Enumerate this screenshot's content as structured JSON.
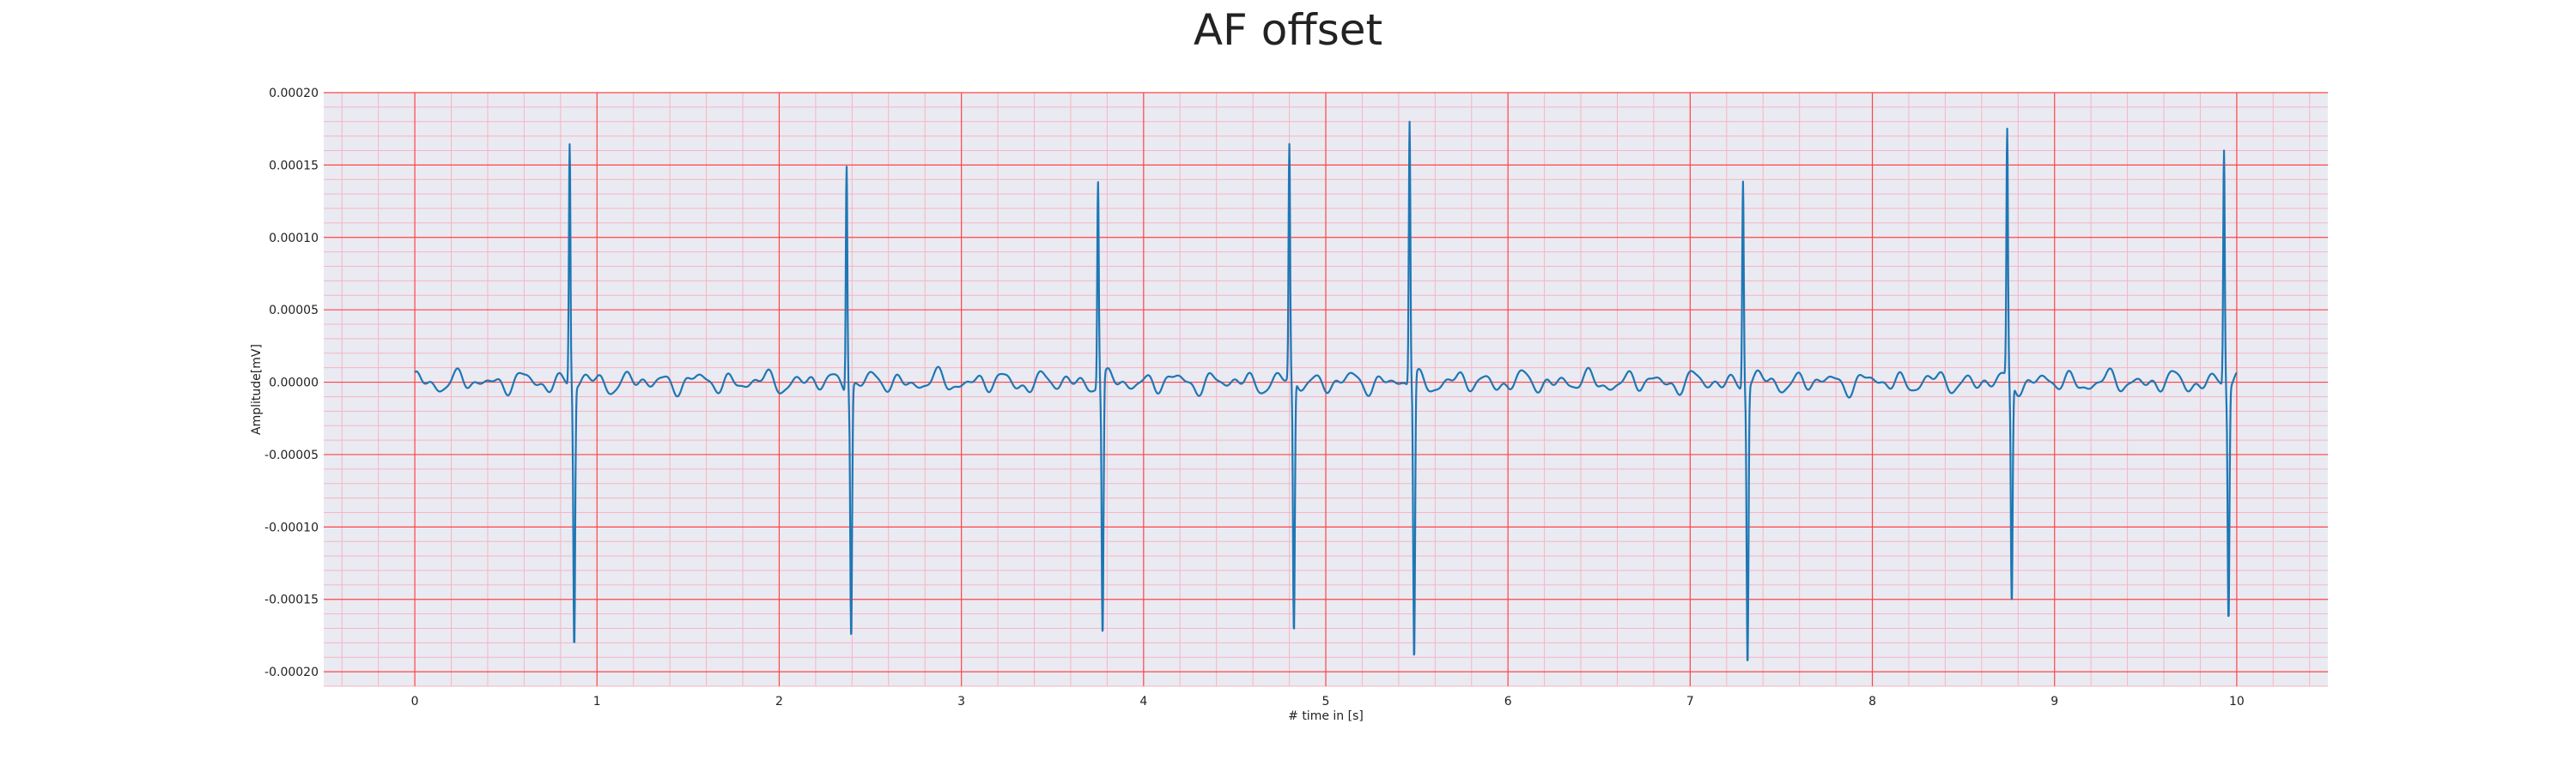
{
  "chart_data": {
    "type": "line",
    "title": "AF offset",
    "xlabel": "# time in [s]",
    "ylabel": "Amplitude[mV]",
    "xlim": [
      -0.5,
      10.5
    ],
    "ylim": [
      -0.00021,
      0.0002
    ],
    "x_ticks": [
      0,
      1,
      2,
      3,
      4,
      5,
      6,
      7,
      8,
      9,
      10
    ],
    "x_tick_labels": [
      "0",
      "1",
      "2",
      "3",
      "4",
      "5",
      "6",
      "7",
      "8",
      "9",
      "10"
    ],
    "y_ticks": [
      0.0002,
      0.00015,
      0.0001,
      5e-05,
      0.0,
      -5e-05,
      -0.0001,
      -0.00015,
      -0.0002
    ],
    "y_tick_labels": [
      "0.00020",
      "0.00015",
      "0.00010",
      "0.00005",
      "0.00000",
      "-0.00005",
      "-0.00010",
      "-0.00015",
      "-0.00020"
    ],
    "grid": true,
    "series": [
      {
        "color": "#1f77b4",
        "x_start": 0,
        "x_end": 10,
        "baseline_noise_amplitude": 8e-06,
        "beats": [
          {
            "t": 0.85,
            "peak": 0.000167,
            "trough": -0.000179
          },
          {
            "t": 2.37,
            "peak": 0.000157,
            "trough": -0.000173
          },
          {
            "t": 3.75,
            "peak": 0.000142,
            "trough": -0.000178
          },
          {
            "t": 4.8,
            "peak": 0.000161,
            "trough": -0.000176
          },
          {
            "t": 5.46,
            "peak": 0.000182,
            "trough": -0.000195
          },
          {
            "t": 7.29,
            "peak": 0.000144,
            "trough": -0.000191
          },
          {
            "t": 8.74,
            "peak": 0.00017,
            "trough": -0.000153
          },
          {
            "t": 9.93,
            "peak": 0.000163,
            "trough": -0.00016
          }
        ]
      }
    ]
  },
  "colors": {
    "plot_background": "#eaeaf2",
    "major_grid": "#ff4444",
    "minor_grid": "#f4b6c2",
    "line": "#1f77b4"
  }
}
